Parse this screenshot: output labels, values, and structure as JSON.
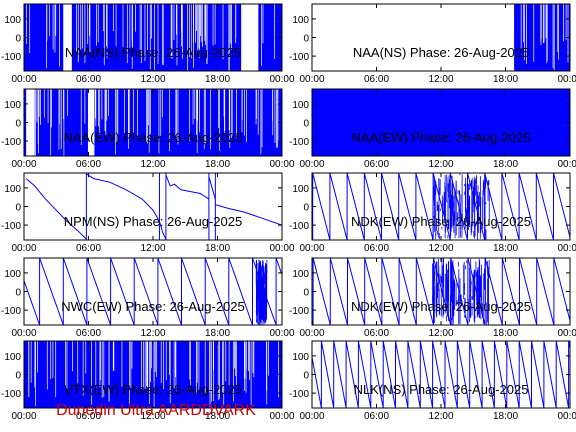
{
  "footer": {
    "text": "Dunedin Ultra AARDDVARK",
    "color": "#cc0000"
  },
  "style": {
    "trace_color": "#0000ff",
    "frame_color": "#000000"
  },
  "chart_data": [
    {
      "type": "line",
      "title": "NAA(NS) Phase: 26-Aug-2025",
      "ylim": [
        -180,
        180
      ],
      "yticks": [
        "100",
        "0",
        "-100"
      ],
      "xticks": [
        "00:00",
        "06:00",
        "12:00",
        "18:00",
        "00:00"
      ],
      "xlim_hours": [
        0,
        24
      ],
      "pattern": "dense_noise",
      "gaps": [
        [
          3.6,
          4.4
        ],
        [
          20.2,
          21.8
        ]
      ]
    },
    {
      "type": "line",
      "title": "NAA(NS) Phase: 26-Aug-2025",
      "ylim": [
        -180,
        180
      ],
      "yticks": [
        "100",
        "0",
        "-100"
      ],
      "xticks": [
        "00:00",
        "06:00",
        "12:00",
        "18:00",
        "00:00"
      ],
      "xlim_hours": [
        0,
        24
      ],
      "pattern": "dense_noise",
      "gaps": [
        [
          0,
          18.8
        ]
      ]
    },
    {
      "type": "line",
      "title": "NAA(EW) Phase: 26-Aug-2025",
      "ylim": [
        -180,
        180
      ],
      "yticks": [
        "100",
        "0",
        "-100"
      ],
      "xticks": [
        "00:00",
        "06:00",
        "12:00",
        "18:00",
        "00:00"
      ],
      "xlim_hours": [
        0,
        24
      ],
      "pattern": "dense_noise",
      "gaps": [
        [
          0.2,
          1.0
        ],
        [
          5.9,
          6.5
        ]
      ]
    },
    {
      "type": "line",
      "title": "NAA(EW) Phase: 26-Aug-2025",
      "ylim": [
        -180,
        180
      ],
      "yticks": [
        "100",
        "0",
        "-100"
      ],
      "xticks": [
        "00:00",
        "06:00",
        "12:00",
        "18:00",
        "00:00"
      ],
      "xlim_hours": [
        0,
        24
      ],
      "pattern": "solid",
      "gaps": []
    },
    {
      "type": "line",
      "title": "NPM(NS) Phase: 26-Aug-2025",
      "ylim": [
        -180,
        180
      ],
      "yticks": [
        "100",
        "0",
        "-100"
      ],
      "xticks": [
        "00:00",
        "06:00",
        "12:00",
        "18:00",
        "00:00"
      ],
      "xlim_hours": [
        0,
        24
      ],
      "pattern": "drift",
      "series": [
        {
          "x": [
            0.2,
            1.0,
            2.0,
            3.0,
            4.0,
            5.0,
            5.8
          ],
          "y": [
            150,
            110,
            40,
            -20,
            -80,
            -130,
            -175
          ]
        },
        {
          "x": [
            5.8,
            6.5,
            8.0,
            9.5,
            11.0,
            12.0,
            12.6
          ],
          "y": [
            175,
            150,
            130,
            90,
            40,
            -20,
            -80
          ]
        },
        {
          "x": [
            12.6,
            12.9,
            13.2
          ],
          "y": [
            -80,
            -140,
            -175
          ]
        },
        {
          "x": [
            13.2,
            13.6,
            14.0,
            14.6,
            15.5,
            16.4,
            17.2
          ],
          "y": [
            170,
            110,
            120,
            90,
            80,
            70,
            40
          ]
        },
        {
          "x": [
            17.2,
            17.8
          ],
          "y": [
            160,
            40
          ]
        },
        {
          "x": [
            17.8,
            19.0,
            20.5,
            22.0,
            24.0
          ],
          "y": [
            10,
            -10,
            -30,
            -60,
            -100
          ]
        }
      ]
    },
    {
      "type": "line",
      "title": "NDK(EW) Phase: 26-Aug-2025",
      "ylim": [
        -180,
        180
      ],
      "yticks": [
        "100",
        "0",
        "-100"
      ],
      "xticks": [
        "00:00",
        "06:00",
        "12:00",
        "18:00",
        "00:00"
      ],
      "xlim_hours": [
        0,
        24
      ],
      "pattern": "sawtooth",
      "period_hours": 1.6,
      "noise_interval_hours": [
        11.2,
        16.5
      ]
    },
    {
      "type": "line",
      "title": "NWC(EW) Phase: 26-Aug-2025",
      "ylim": [
        -180,
        180
      ],
      "yticks": [
        "100",
        "0",
        "-100"
      ],
      "xticks": [
        "00:00",
        "06:00",
        "12:00",
        "18:00",
        "00:00"
      ],
      "xlim_hours": [
        0,
        24
      ],
      "pattern": "sawtooth",
      "period_hours": 2.2,
      "noise_interval_hours": [
        21.6,
        22.6
      ]
    },
    {
      "type": "line",
      "title": "NDK(EW) Phase: 26-Aug-2025",
      "ylim": [
        -180,
        180
      ],
      "yticks": [
        "100",
        "0",
        "-100"
      ],
      "xticks": [
        "00:00",
        "06:00",
        "12:00",
        "18:00",
        "00:00"
      ],
      "xlim_hours": [
        0,
        24
      ],
      "pattern": "sawtooth",
      "period_hours": 1.6,
      "noise_interval_hours": [
        11.2,
        16.5
      ]
    },
    {
      "type": "line",
      "title": "VTX(EW) Phase: 26-Aug-2025",
      "ylim": [
        -180,
        180
      ],
      "yticks": [
        "100",
        "0",
        "-100"
      ],
      "xticks": [
        "00:00",
        "06:00",
        "12:00",
        "18:00",
        "00:00"
      ],
      "xlim_hours": [
        0,
        24
      ],
      "pattern": "dense_noise",
      "gaps": []
    },
    {
      "type": "line",
      "title": "NLK(NS) Phase: 26-Aug-2025",
      "ylim": [
        -180,
        180
      ],
      "yticks": [
        "100",
        "0",
        "-100"
      ],
      "xticks": [
        "00:00",
        "06:00",
        "12:00",
        "18:00",
        "00:00"
      ],
      "xlim_hours": [
        0,
        24
      ],
      "pattern": "sawtooth",
      "period_hours": 1.15,
      "noise_interval_hours": []
    }
  ]
}
